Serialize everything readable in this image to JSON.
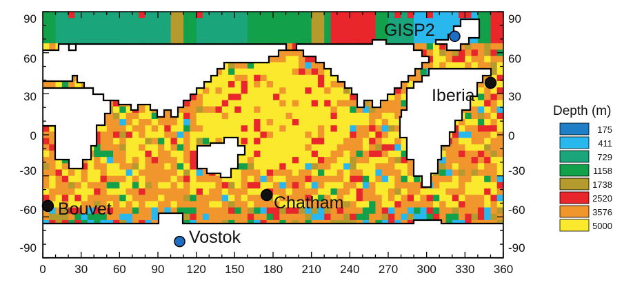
{
  "map": {
    "x_ticks": [
      "0",
      "30",
      "60",
      "90",
      "120",
      "150",
      "180",
      "210",
      "240",
      "270",
      "300",
      "330",
      "360"
    ],
    "y_ticks": [
      "90",
      "60",
      "30",
      "0",
      "-30",
      "-60",
      "-90"
    ]
  },
  "sites": [
    {
      "name": "GISP2",
      "lon": 322,
      "lat": 72,
      "color": "#1e6fc4"
    },
    {
      "name": "Iberia",
      "lon": 350,
      "lat": 38,
      "color": "#111111"
    },
    {
      "name": "Chatham",
      "lon": 175,
      "lat": -44,
      "color": "#111111"
    },
    {
      "name": "Bouvet",
      "lon": 4,
      "lat": -52,
      "color": "#111111"
    },
    {
      "name": "Vostok",
      "lon": 107,
      "lat": -78,
      "color": "#1e6fc4"
    }
  ],
  "legend": {
    "title": "Depth (m)",
    "items": [
      {
        "label": "175",
        "color": "#1f7fc6"
      },
      {
        "label": "411",
        "color": "#29b8ee"
      },
      {
        "label": "729",
        "color": "#1aa57a"
      },
      {
        "label": "1158",
        "color": "#12a04a"
      },
      {
        "label": "1738",
        "color": "#b59a2e"
      },
      {
        "label": "2520",
        "color": "#e8262b"
      },
      {
        "label": "3576",
        "color": "#f0962c"
      },
      {
        "label": "5000",
        "color": "#fae92d"
      }
    ]
  }
}
